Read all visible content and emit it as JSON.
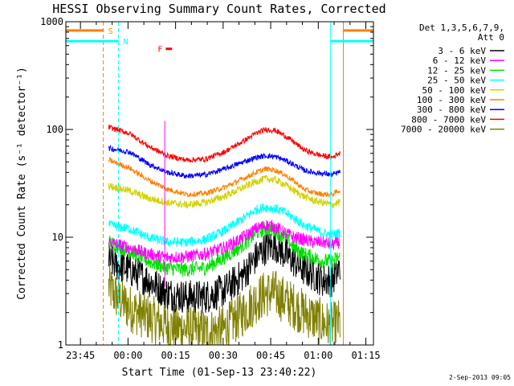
{
  "chart_data": {
    "type": "line",
    "title": "HESSI Observing Summary Count Rates, Corrected",
    "xlabel": "Start Time (01-Sep-13 23:40:22)",
    "ylabel": "Corrected Count Rate (s⁻¹ detector⁻¹)",
    "x_unit": "minutes from 01-Sep-13 23:40:22",
    "xlim": [
      0,
      97
    ],
    "ylim": [
      1,
      1000
    ],
    "y_scale": "log",
    "x_ticks": [
      {
        "t": 4.6,
        "label": "23:45"
      },
      {
        "t": 19.6,
        "label": "00:00"
      },
      {
        "t": 34.6,
        "label": "00:15"
      },
      {
        "t": 49.6,
        "label": "00:30"
      },
      {
        "t": 64.6,
        "label": "00:45"
      },
      {
        "t": 79.6,
        "label": "01:00"
      },
      {
        "t": 94.6,
        "label": "01:15"
      }
    ],
    "y_ticks": [
      {
        "v": 1,
        "label": "1"
      },
      {
        "v": 10,
        "label": "10"
      },
      {
        "v": 100,
        "label": "100"
      },
      {
        "v": 1000,
        "label": "1000"
      }
    ],
    "legend": {
      "position": "right",
      "header1": "Det 1,3,5,6,7,9,",
      "header2": "Att 0"
    },
    "data_start": 13.5,
    "data_end": 86.5,
    "series": [
      {
        "name": "3 - 6 keV",
        "color": "#000000",
        "points": [
          [
            13.5,
            6
          ],
          [
            20,
            5
          ],
          [
            26,
            4
          ],
          [
            32,
            3
          ],
          [
            38,
            2.8
          ],
          [
            44,
            2.8
          ],
          [
            50,
            3.2
          ],
          [
            56,
            4.5
          ],
          [
            60,
            6.5
          ],
          [
            63,
            8
          ],
          [
            66,
            8.5
          ],
          [
            69,
            7
          ],
          [
            72,
            6
          ],
          [
            75,
            5
          ],
          [
            78,
            4.5
          ],
          [
            81,
            4
          ],
          [
            84,
            4
          ],
          [
            86,
            5
          ]
        ]
      },
      {
        "name": "6 - 12 keV",
        "color": "#ff00ff",
        "points": [
          [
            13.5,
            9
          ],
          [
            20,
            8
          ],
          [
            26,
            7
          ],
          [
            32,
            6.5
          ],
          [
            38,
            6.6
          ],
          [
            44,
            7
          ],
          [
            50,
            8
          ],
          [
            56,
            10
          ],
          [
            60,
            12
          ],
          [
            63,
            13
          ],
          [
            66,
            12.5
          ],
          [
            69,
            11
          ],
          [
            72,
            10
          ],
          [
            75,
            9.5
          ],
          [
            78,
            9
          ],
          [
            81,
            9
          ],
          [
            84,
            8.5
          ],
          [
            86,
            9
          ]
        ]
      },
      {
        "name": "12 - 25 keV",
        "color": "#00e000",
        "points": [
          [
            13.5,
            9
          ],
          [
            20,
            7.5
          ],
          [
            26,
            6
          ],
          [
            32,
            5.2
          ],
          [
            38,
            5
          ],
          [
            44,
            5.2
          ],
          [
            50,
            6.5
          ],
          [
            56,
            8.5
          ],
          [
            60,
            11
          ],
          [
            63,
            12
          ],
          [
            66,
            11.5
          ],
          [
            69,
            10
          ],
          [
            72,
            8
          ],
          [
            75,
            7
          ],
          [
            78,
            6.5
          ],
          [
            81,
            6
          ],
          [
            84,
            6
          ],
          [
            86,
            6.5
          ]
        ]
      },
      {
        "name": "25 - 50 keV",
        "color": "#00ffff",
        "points": [
          [
            13.5,
            13
          ],
          [
            20,
            12
          ],
          [
            26,
            10
          ],
          [
            32,
            9
          ],
          [
            38,
            9
          ],
          [
            44,
            9.5
          ],
          [
            50,
            11.5
          ],
          [
            56,
            15
          ],
          [
            60,
            18
          ],
          [
            63,
            19
          ],
          [
            66,
            18.5
          ],
          [
            69,
            17
          ],
          [
            72,
            15
          ],
          [
            75,
            13
          ],
          [
            78,
            12
          ],
          [
            81,
            11
          ],
          [
            84,
            10.5
          ],
          [
            86,
            11
          ]
        ]
      },
      {
        "name": "50 - 100 keV",
        "color": "#d2d200",
        "points": [
          [
            13.5,
            30
          ],
          [
            20,
            27
          ],
          [
            26,
            23
          ],
          [
            32,
            21
          ],
          [
            38,
            20
          ],
          [
            44,
            21
          ],
          [
            50,
            24
          ],
          [
            56,
            29
          ],
          [
            60,
            33
          ],
          [
            63,
            35
          ],
          [
            66,
            34
          ],
          [
            69,
            31
          ],
          [
            72,
            27
          ],
          [
            75,
            24
          ],
          [
            78,
            22
          ],
          [
            81,
            21
          ],
          [
            84,
            20
          ],
          [
            86,
            21
          ]
        ]
      },
      {
        "name": "100 - 300 keV",
        "color": "#ff8000",
        "points": [
          [
            13.5,
            52
          ],
          [
            20,
            44
          ],
          [
            26,
            34
          ],
          [
            32,
            28
          ],
          [
            38,
            25
          ],
          [
            44,
            25.5
          ],
          [
            50,
            29
          ],
          [
            56,
            35
          ],
          [
            60,
            40
          ],
          [
            63,
            43
          ],
          [
            66,
            42
          ],
          [
            69,
            38
          ],
          [
            72,
            33
          ],
          [
            75,
            28
          ],
          [
            78,
            26
          ],
          [
            81,
            25
          ],
          [
            84,
            25
          ],
          [
            86,
            27
          ]
        ]
      },
      {
        "name": "300 - 800 keV",
        "color": "#0000ff",
        "points": [
          [
            13.5,
            67
          ],
          [
            20,
            62
          ],
          [
            26,
            48
          ],
          [
            32,
            40
          ],
          [
            38,
            37
          ],
          [
            44,
            38
          ],
          [
            50,
            43
          ],
          [
            56,
            50
          ],
          [
            60,
            55
          ],
          [
            63,
            57
          ],
          [
            66,
            56
          ],
          [
            69,
            52
          ],
          [
            72,
            47
          ],
          [
            75,
            42
          ],
          [
            78,
            40
          ],
          [
            81,
            39
          ],
          [
            84,
            38
          ],
          [
            86,
            40
          ]
        ]
      },
      {
        "name": "800 - 7000 keV",
        "color": "#ff0000",
        "points": [
          [
            13.5,
            105
          ],
          [
            20,
            92
          ],
          [
            26,
            70
          ],
          [
            32,
            57
          ],
          [
            38,
            52
          ],
          [
            44,
            53
          ],
          [
            50,
            62
          ],
          [
            56,
            78
          ],
          [
            60,
            92
          ],
          [
            63,
            100
          ],
          [
            66,
            98
          ],
          [
            69,
            88
          ],
          [
            72,
            76
          ],
          [
            75,
            65
          ],
          [
            78,
            60
          ],
          [
            81,
            57
          ],
          [
            84,
            55
          ],
          [
            86,
            60
          ]
        ]
      },
      {
        "name": "7000 - 20000 keV",
        "color": "#808000",
        "points": [
          [
            13.5,
            3.5
          ],
          [
            15,
            3
          ],
          [
            20,
            2.2
          ],
          [
            26,
            1.8
          ],
          [
            32,
            1.5
          ],
          [
            38,
            1.4
          ],
          [
            44,
            1.3
          ],
          [
            50,
            1.4
          ],
          [
            56,
            2
          ],
          [
            60,
            2.6
          ],
          [
            63,
            3
          ],
          [
            66,
            3
          ],
          [
            69,
            2.6
          ],
          [
            72,
            2.3
          ],
          [
            75,
            2
          ],
          [
            78,
            1.8
          ],
          [
            81,
            1.6
          ],
          [
            84,
            1.5
          ],
          [
            86,
            1.6
          ]
        ]
      }
    ],
    "annotations": [
      {
        "text": "S",
        "type": "saa",
        "color": "#ff8000",
        "t_end": 11.8,
        "t_start_after": 87.5,
        "bar_y": 830
      },
      {
        "text": "N",
        "type": "night",
        "color": "#00ffff",
        "t_end": 16.6,
        "t_start_after": 83.5,
        "bar_y": 660
      },
      {
        "text": "F",
        "type": "flare_flag",
        "color": "#ff0000",
        "t_from": 31.5,
        "t_to": 33.5,
        "bar_y": 560
      }
    ],
    "flare_spike": {
      "t": 31.2,
      "y_low": 3.5,
      "y_high": 120,
      "color": "#ff00ff"
    }
  },
  "footer": {
    "date_stamp": "2-Sep-2013 09:05"
  }
}
